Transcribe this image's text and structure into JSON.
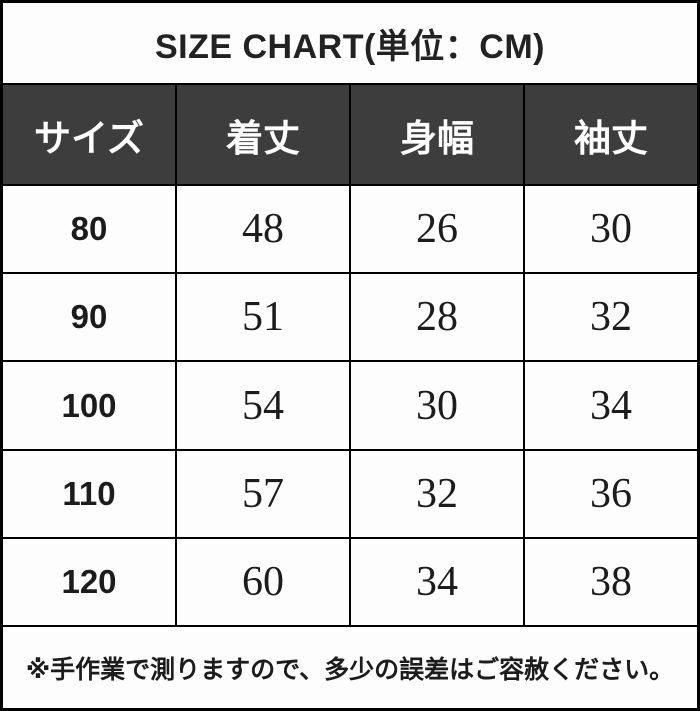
{
  "title": "SIZE CHART(単位：CM)",
  "footer_note": "※手作業で測りますので、多少の誤差はご容赦ください。",
  "colors": {
    "header_bg": "#3d3d3d",
    "header_text": "#ffffff",
    "border": "#000000",
    "body_bg": "#fdfdfd",
    "text": "#1c1c1c"
  },
  "chart_data": {
    "type": "table",
    "title": "SIZE CHART(単位：CM)",
    "unit": "CM",
    "columns": [
      "サイズ",
      "着丈",
      "身幅",
      "袖丈"
    ],
    "rows": [
      [
        "80",
        "48",
        "26",
        "30"
      ],
      [
        "90",
        "51",
        "28",
        "32"
      ],
      [
        "100",
        "54",
        "30",
        "34"
      ],
      [
        "110",
        "57",
        "32",
        "36"
      ],
      [
        "120",
        "60",
        "34",
        "38"
      ]
    ],
    "note": "※手作業で測りますので、多少の誤差はご容赦ください。"
  }
}
